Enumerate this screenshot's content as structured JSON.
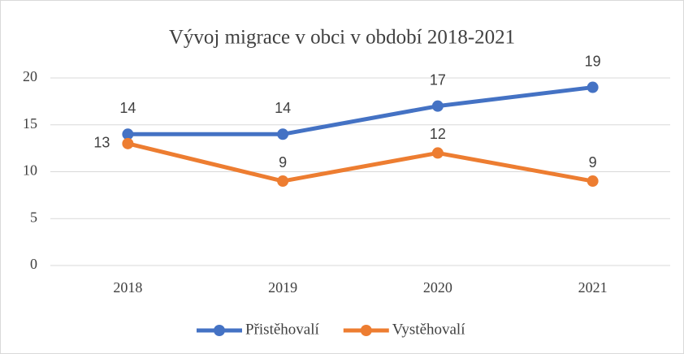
{
  "chart_data": {
    "type": "line",
    "title": "Vývoj migrace v obci v období 2018-2021",
    "categories": [
      "2018",
      "2019",
      "2020",
      "2021"
    ],
    "series": [
      {
        "name": "Přistěhovalí",
        "color": "#4472c4",
        "values": [
          14,
          14,
          17,
          19
        ]
      },
      {
        "name": "Vystěhovalí",
        "color": "#ed7d31",
        "values": [
          13,
          9,
          12,
          9
        ]
      }
    ],
    "ylim": [
      0,
      20
    ],
    "yticks": [
      0,
      5,
      10,
      15,
      20
    ],
    "grid": true,
    "legend": "bottom"
  }
}
